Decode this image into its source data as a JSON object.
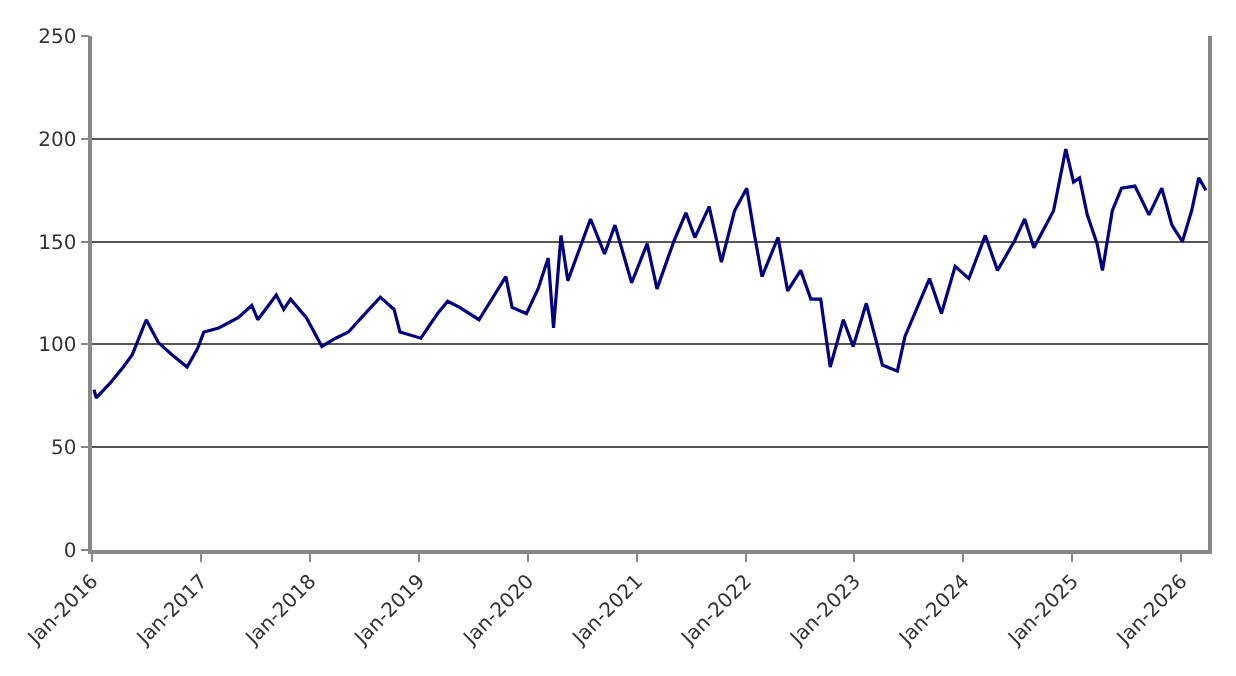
{
  "chart_data": {
    "type": "line",
    "x": [
      "2016-01-08",
      "2016-01-15",
      "2016-03-01",
      "2016-04-15",
      "2016-05-15",
      "2016-07-01",
      "2016-08-10",
      "2016-09-25",
      "2016-11-15",
      "2016-12-20",
      "2017-01-10",
      "2017-03-01",
      "2017-05-05",
      "2017-06-20",
      "2017-07-10",
      "2017-09-10",
      "2017-10-05",
      "2017-10-28",
      "2017-12-20",
      "2018-02-10",
      "2018-03-28",
      "2018-05-10",
      "2018-07-05",
      "2018-08-25",
      "2018-10-10",
      "2018-10-30",
      "2019-01-08",
      "2019-03-05",
      "2019-04-08",
      "2019-05-18",
      "2019-07-22",
      "2019-10-20",
      "2019-11-10",
      "2019-12-28",
      "2020-02-05",
      "2020-03-10",
      "2020-03-28",
      "2020-04-22",
      "2020-05-15",
      "2020-07-30",
      "2020-09-15",
      "2020-10-20",
      "2020-12-15",
      "2021-02-05",
      "2021-03-10",
      "2021-05-05",
      "2021-06-15",
      "2021-07-15",
      "2021-09-01",
      "2021-10-12",
      "2021-11-25",
      "2022-01-05",
      "2022-01-30",
      "2022-02-25",
      "2022-04-20",
      "2022-05-22",
      "2022-07-05",
      "2022-08-08",
      "2022-09-10",
      "2022-10-12",
      "2022-11-25",
      "2022-12-28",
      "2023-02-10",
      "2023-04-05",
      "2023-05-25",
      "2023-06-20",
      "2023-09-10",
      "2023-10-20",
      "2023-12-05",
      "2024-01-20",
      "2024-03-15",
      "2024-04-25",
      "2024-06-20",
      "2024-07-25",
      "2024-08-25",
      "2024-10-30",
      "2024-12-10",
      "2025-01-05",
      "2025-01-25",
      "2025-02-20",
      "2025-03-25",
      "2025-04-12",
      "2025-05-15",
      "2025-06-15",
      "2025-07-30",
      "2025-09-15",
      "2025-10-28",
      "2025-12-01",
      "2026-01-05",
      "2026-02-05",
      "2026-03-01",
      "2026-03-25"
    ],
    "series": [
      {
        "color": "#000080",
        "values": [
          78,
          74,
          81,
          89,
          95,
          112,
          101,
          95,
          89,
          98,
          106,
          108,
          113,
          119,
          112,
          124,
          117,
          122,
          113,
          99,
          103,
          106,
          115,
          123,
          117,
          106,
          103,
          115,
          121,
          118,
          112,
          133,
          118,
          115,
          127,
          142,
          108,
          153,
          131,
          161,
          144,
          158,
          130,
          149,
          127,
          150,
          164,
          152,
          167,
          140,
          165,
          176,
          154,
          133,
          152,
          126,
          136,
          122,
          122,
          89,
          112,
          99,
          120,
          90,
          87,
          104,
          132,
          115,
          138,
          132,
          153,
          136,
          150,
          161,
          147,
          165,
          195,
          179,
          181,
          163,
          149,
          136,
          165,
          176,
          177,
          163,
          176,
          158,
          150,
          165,
          181,
          175
        ]
      }
    ],
    "xlim": [
      "2016-01-01",
      "2026-04-01"
    ],
    "xticks": [
      {
        "value": "2016-01-01",
        "label": "Jan-2016"
      },
      {
        "value": "2017-01-01",
        "label": "Jan-2017"
      },
      {
        "value": "2018-01-01",
        "label": "Jan-2018"
      },
      {
        "value": "2019-01-01",
        "label": "Jan-2019"
      },
      {
        "value": "2020-01-01",
        "label": "Jan-2020"
      },
      {
        "value": "2021-01-01",
        "label": "Jan-2021"
      },
      {
        "value": "2022-01-01",
        "label": "Jan-2022"
      },
      {
        "value": "2023-01-01",
        "label": "Jan-2023"
      },
      {
        "value": "2024-01-01",
        "label": "Jan-2024"
      },
      {
        "value": "2025-01-01",
        "label": "Jan-2025"
      },
      {
        "value": "2026-01-01",
        "label": "Jan-2026"
      }
    ],
    "ylim": [
      0,
      250
    ],
    "yticks": [
      0,
      50,
      100,
      150,
      200,
      250
    ],
    "grid": "y",
    "marker": "none",
    "line_style": "solid"
  }
}
